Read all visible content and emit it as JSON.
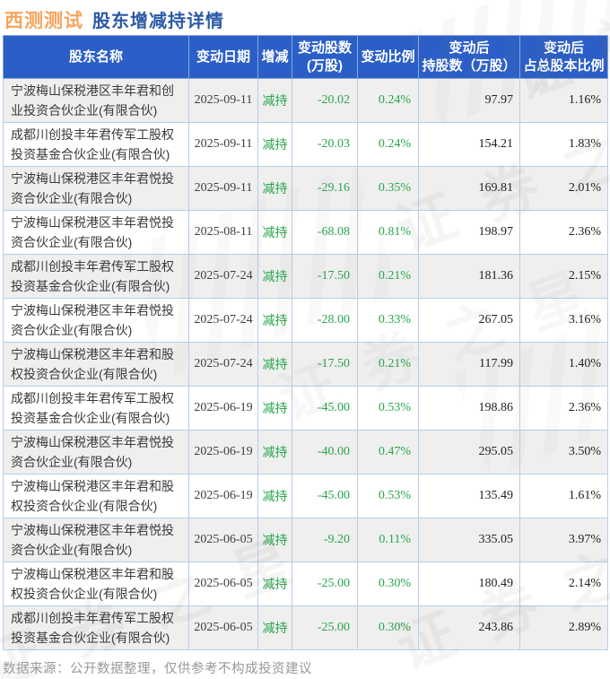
{
  "title": {
    "ticker": "西测测试",
    "subtitle": "股东增减持详情"
  },
  "footer": {
    "text": "数据来源：公开数据整理，仅供参考不构成投资建议"
  },
  "watermark": {
    "text": "证券之星"
  },
  "colors": {
    "header_bg": "#2b5fc7",
    "title_ticker": "#f9a45c",
    "title_subtitle": "#2b5aa6",
    "green": "#29a64c",
    "border": "#b4cfe9",
    "row_alt": "#efefef",
    "num_dark": "#222222",
    "name_text": "#3a3a3a",
    "footer_text": "#999999"
  },
  "chart_data": {
    "type": "table",
    "title": "西测测试 股东增减持详情",
    "columns": [
      {
        "lines": [
          "股东名称"
        ]
      },
      {
        "lines": [
          "变动日期"
        ]
      },
      {
        "lines": [
          "增减"
        ]
      },
      {
        "lines": [
          "变动股数",
          "(万股)"
        ]
      },
      {
        "lines": [
          "变动比例"
        ]
      },
      {
        "lines": [
          "变动后",
          "持股数（万股）"
        ]
      },
      {
        "lines": [
          "变动后",
          "占总股本比例"
        ]
      }
    ],
    "rows": [
      [
        "宁波梅山保税港区丰年君和创业投资合伙企业(有限合伙)",
        "2025-09-11",
        "减持",
        "-20.02",
        "0.24%",
        "97.97",
        "1.16%"
      ],
      [
        "成都川创投丰年君传军工股权投资基金合伙企业(有限合伙)",
        "2025-09-11",
        "减持",
        "-20.03",
        "0.24%",
        "154.21",
        "1.83%"
      ],
      [
        "宁波梅山保税港区丰年君悦投资合伙企业(有限合伙)",
        "2025-09-11",
        "减持",
        "-29.16",
        "0.35%",
        "169.81",
        "2.01%"
      ],
      [
        "宁波梅山保税港区丰年君悦投资合伙企业(有限合伙)",
        "2025-08-11",
        "减持",
        "-68.08",
        "0.81%",
        "198.97",
        "2.36%"
      ],
      [
        "成都川创投丰年君传军工股权投资基金合伙企业(有限合伙)",
        "2025-07-24",
        "减持",
        "-17.50",
        "0.21%",
        "181.36",
        "2.15%"
      ],
      [
        "宁波梅山保税港区丰年君悦投资合伙企业(有限合伙)",
        "2025-07-24",
        "减持",
        "-28.00",
        "0.33%",
        "267.05",
        "3.16%"
      ],
      [
        "宁波梅山保税港区丰年君和股权投资合伙企业(有限合伙)",
        "2025-07-24",
        "减持",
        "-17.50",
        "0.21%",
        "117.99",
        "1.40%"
      ],
      [
        "成都川创投丰年君传军工股权投资基金合伙企业(有限合伙)",
        "2025-06-19",
        "减持",
        "-45.00",
        "0.53%",
        "198.86",
        "2.36%"
      ],
      [
        "宁波梅山保税港区丰年君悦投资合伙企业(有限合伙)",
        "2025-06-19",
        "减持",
        "-40.00",
        "0.47%",
        "295.05",
        "3.50%"
      ],
      [
        "宁波梅山保税港区丰年君和股权投资合伙企业(有限合伙)",
        "2025-06-19",
        "减持",
        "-45.00",
        "0.53%",
        "135.49",
        "1.61%"
      ],
      [
        "宁波梅山保税港区丰年君悦投资合伙企业(有限合伙)",
        "2025-06-05",
        "减持",
        "-9.20",
        "0.11%",
        "335.05",
        "3.97%"
      ],
      [
        "宁波梅山保税港区丰年君和股权投资合伙企业(有限合伙)",
        "2025-06-05",
        "减持",
        "-25.00",
        "0.30%",
        "180.49",
        "2.14%"
      ],
      [
        "成都川创投丰年君传军工股权投资基金合伙企业(有限合伙)",
        "2025-06-05",
        "减持",
        "-25.00",
        "0.30%",
        "243.86",
        "2.89%"
      ]
    ],
    "source_note": "数据来源：公开数据整理，仅供参考不构成投资建议",
    "layout": {
      "grid": "bordered",
      "row_stripes": true,
      "header_position": "top"
    }
  }
}
